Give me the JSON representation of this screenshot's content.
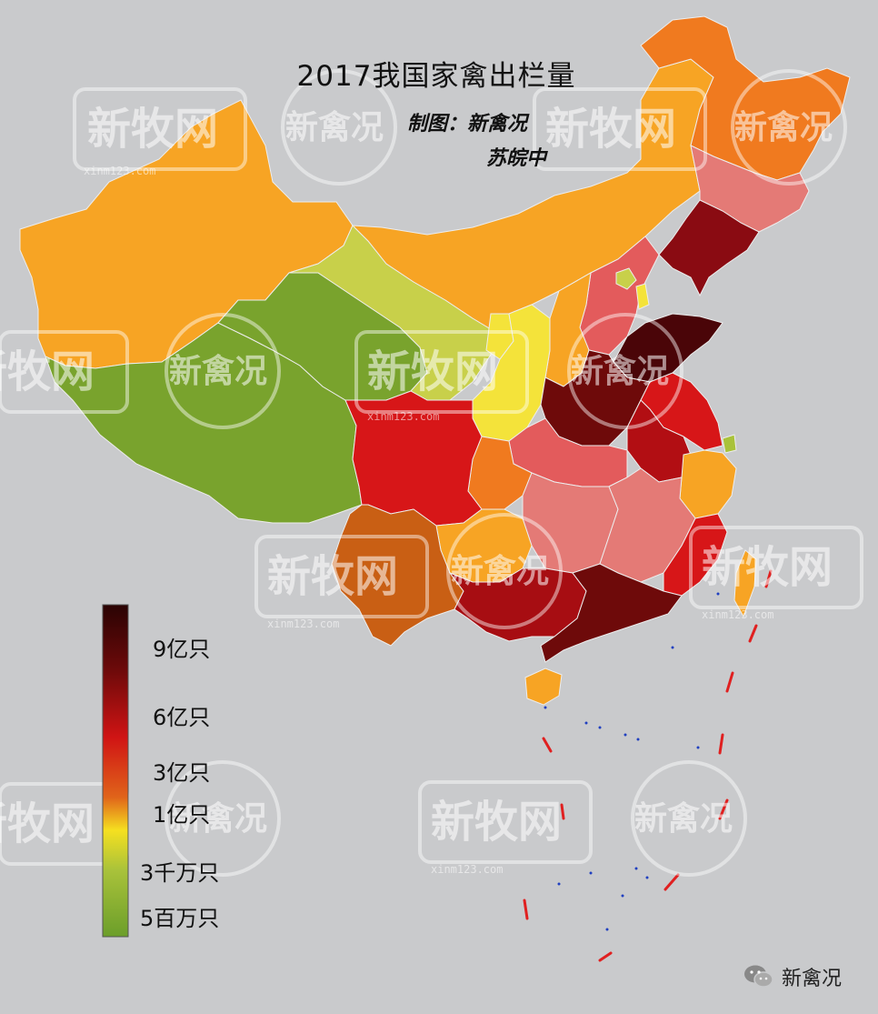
{
  "title": "2017我国家禽出栏量",
  "credit_label": "制图：新禽况",
  "credit_name": "苏皖中",
  "legend": {
    "labels": [
      "9亿只",
      "6亿只",
      "3亿只",
      "1亿只",
      "3千万只",
      "5百万只"
    ],
    "colors": [
      "#3a0505",
      "#6e0a0a",
      "#c81212",
      "#e25f12",
      "#f7d21c",
      "#a9c23a",
      "#6b9e2a"
    ]
  },
  "watermark": {
    "brand": "新牧网",
    "sub": "xinm123.com",
    "alt": "新禽况"
  },
  "wechat_label": "新禽况",
  "region_colors": {
    "heilongjiang": "#f07a1f",
    "jilin": "#e47a76",
    "liaoning": "#8a0b12",
    "inner_mongolia": "#f7a424",
    "xinjiang": "#f7a424",
    "gansu": "#c8d04a",
    "ningxia": "#f4e33a",
    "shaanxi": "#f4e33a",
    "shanxi": "#f7a424",
    "hebei": "#e35b5c",
    "beijing": "#c8d04a",
    "tianjin": "#f4e33a",
    "shandong": "#4a0508",
    "henan": "#6e0a0a",
    "jiangsu": "#d71618",
    "anhui": "#b20e13",
    "shanghai": "#a9c23a",
    "zhejiang": "#f7a424",
    "hubei": "#e35b5c",
    "tibet": "#79a32d",
    "qinghai": "#79a32d",
    "sichuan": "#d71618",
    "chongqing": "#f07a1f",
    "hunan": "#e47a76",
    "jiangxi": "#e47a76",
    "fujian": "#d71618",
    "yunnan": "#c95f14",
    "guizhou": "#f7a424",
    "guangxi": "#a70d12",
    "guangdong": "#6e0a0a",
    "hainan": "#f7a424",
    "taiwan": "#f7a424"
  }
}
